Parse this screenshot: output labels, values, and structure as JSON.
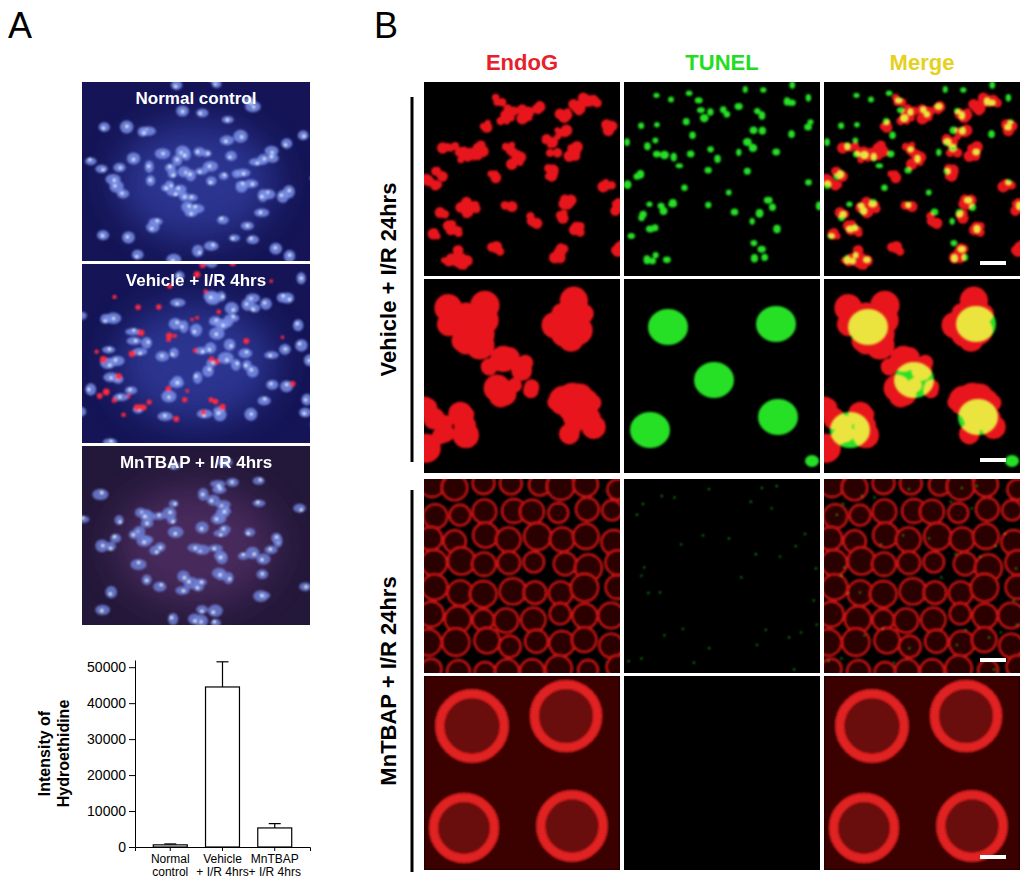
{
  "figure": {
    "panel_labels": [
      "A",
      "B"
    ],
    "panel_a_images": [
      "Normal control",
      "Vehicle + I/R 4hrs",
      "MnTBAP + I/R 4hrs"
    ],
    "columns": [
      "EndoG",
      "TUNEL",
      "Merge"
    ],
    "rows": [
      "Vehicle + I/R 24hrs",
      "MnTBAP + I/R 24hrs"
    ]
  },
  "chart_data": {
    "type": "bar",
    "categories": [
      "Normal\ncontrol",
      "Vehicle\n+ I/R 4hrs",
      "MnTBAP\n+ I/R 4hrs"
    ],
    "values": [
      600,
      44500,
      5300
    ],
    "errors": [
      250,
      7000,
      1200
    ],
    "ylabel": "Intensity of\nHydroethidine",
    "ylim": [
      0,
      52000
    ],
    "yticks": [
      0,
      10000,
      20000,
      30000,
      40000,
      50000
    ],
    "color": "#ffffff"
  }
}
